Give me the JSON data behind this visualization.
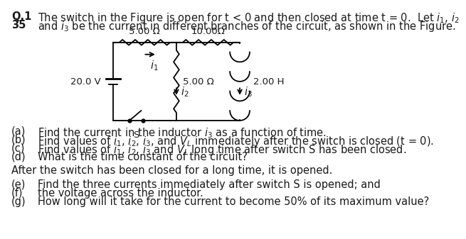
{
  "bg_color": "#ffffff",
  "text_color": "#1a1a1a",
  "font_size_main": 10.5,
  "font_size_circuit": 9.5,
  "header": {
    "q_label": "Q.1",
    "num_label": "35",
    "line1": "The switch in the Figure is open for t < 0 and then closed at time t = 0.  Let i₁, i₂",
    "line2": "and i₃ be the current in different branches of the circuit, as shown in the Figure."
  },
  "circuit": {
    "R1_label": "5.00 Ω",
    "R2_label": "10.00Ω",
    "R3_label": "5.00 Ω",
    "L_label": "2.00 H",
    "V_label": "20.0 V",
    "i1_label": "i₁",
    "i2_label": "i₂",
    "i3_label": "i₃",
    "S_label": "S"
  },
  "questions_ab": [
    [
      "(a)",
      "Find the current in the inductor i₃ as a function of time."
    ],
    [
      "(b)",
      "Find values of i₁, i₂, i₃, and Vₗ immediately after the switch is closed (t = 0)."
    ],
    [
      "(c)",
      "Find values of i₁, i₂, i₃ and Vₗ long time after switch S has been closed."
    ],
    [
      "(d)",
      "What is the time constant of the circuit?"
    ]
  ],
  "middle_text": "After the switch has been closed for a long time, it is opened.",
  "questions_eg": [
    [
      "(e)",
      "Find the three currents immediately after switch S is opened; and"
    ],
    [
      "(f)",
      "the voltage across the inductor."
    ],
    [
      "(g)",
      "How long will it take for the current to become 50% of its maximum value?"
    ]
  ]
}
